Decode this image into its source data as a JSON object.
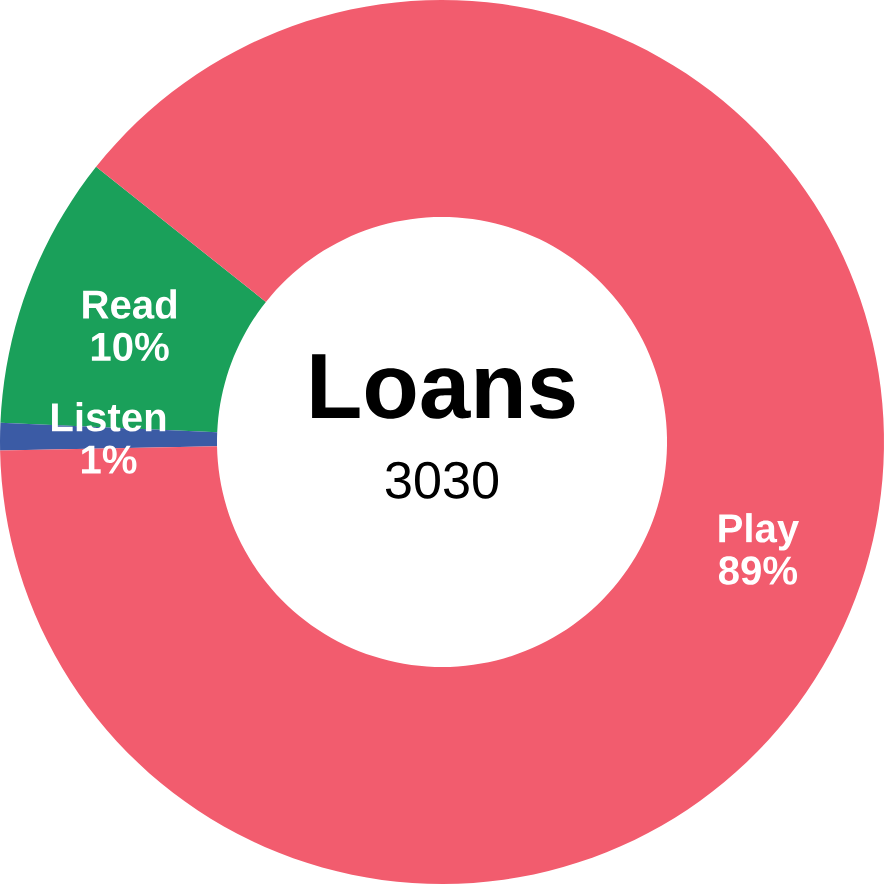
{
  "chart_data": {
    "type": "donut",
    "title": "Loans",
    "subtitle": "3030",
    "categories": [
      "Read",
      "Listen",
      "Play"
    ],
    "values": [
      10,
      1,
      89
    ],
    "value_labels": [
      "10%",
      "1%",
      "89%"
    ],
    "colors": [
      "#1aa05a",
      "#3b5ba5",
      "#f25c6e"
    ]
  }
}
